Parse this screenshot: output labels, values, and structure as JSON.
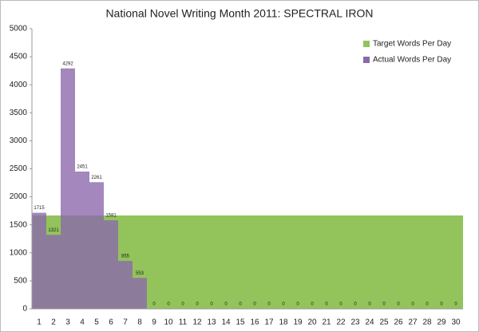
{
  "chart_data": {
    "type": "bar",
    "overlap": true,
    "title": "National Novel Writing Month 2011: SPECTRAL IRON",
    "categories": [
      "1",
      "2",
      "3",
      "4",
      "5",
      "6",
      "7",
      "8",
      "9",
      "10",
      "11",
      "12",
      "13",
      "14",
      "15",
      "16",
      "17",
      "18",
      "19",
      "20",
      "21",
      "22",
      "23",
      "24",
      "25",
      "26",
      "27",
      "28",
      "29",
      "30"
    ],
    "series": [
      {
        "name": "Target Words Per Day",
        "color": "#93c35b",
        "values": [
          1667,
          1667,
          1667,
          1667,
          1667,
          1667,
          1667,
          1667,
          1667,
          1667,
          1667,
          1667,
          1667,
          1667,
          1667,
          1667,
          1667,
          1667,
          1667,
          1667,
          1667,
          1667,
          1667,
          1667,
          1667,
          1667,
          1667,
          1667,
          1667,
          1667
        ]
      },
      {
        "name": "Actual Words Per Day",
        "color": "#8c69ad",
        "data_labels": true,
        "values": [
          1715,
          1321,
          4292,
          2451,
          2261,
          1581,
          855,
          553,
          0,
          0,
          0,
          0,
          0,
          0,
          0,
          0,
          0,
          0,
          0,
          0,
          0,
          0,
          0,
          0,
          0,
          0,
          0,
          0,
          0,
          0
        ]
      }
    ],
    "ylim": [
      0,
      5000
    ],
    "yticks": [
      0,
      500,
      1000,
      1500,
      2000,
      2500,
      3000,
      3500,
      4000,
      4500,
      5000
    ],
    "grid": false,
    "legend": "top-right"
  }
}
